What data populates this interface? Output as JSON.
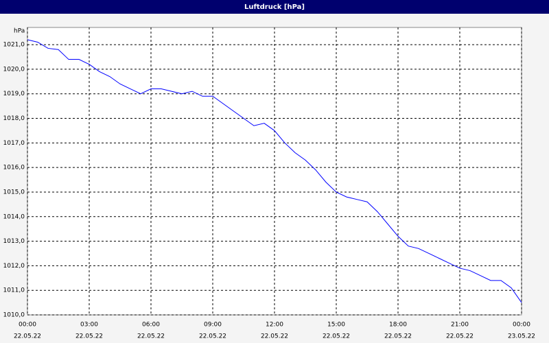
{
  "chart_data": {
    "type": "line",
    "title": "Luftdruck [hPa]",
    "y_label": "hPa",
    "x": [
      0,
      0.5,
      1,
      1.5,
      2,
      2.5,
      3,
      3.5,
      4,
      4.5,
      5,
      5.5,
      6,
      6.5,
      7,
      7.5,
      8,
      8.5,
      9,
      9.5,
      10,
      10.5,
      11,
      11.5,
      12,
      12.5,
      13,
      13.5,
      14,
      14.5,
      15,
      15.5,
      16,
      16.5,
      17,
      17.5,
      18,
      18.5,
      19,
      19.5,
      20,
      20.5,
      21,
      21.5,
      22,
      22.5,
      23,
      23.5,
      24
    ],
    "series": [
      {
        "name": "Luftdruck",
        "color": "#0000ff",
        "values": [
          1021.2,
          1021.1,
          1020.85,
          1020.8,
          1020.4,
          1020.4,
          1020.2,
          1019.9,
          1019.7,
          1019.4,
          1019.2,
          1019.0,
          1019.2,
          1019.2,
          1019.1,
          1019.0,
          1019.1,
          1018.9,
          1018.9,
          1018.6,
          1018.3,
          1018.0,
          1017.7,
          1017.8,
          1017.5,
          1017.0,
          1016.6,
          1016.3,
          1015.9,
          1015.4,
          1015.0,
          1014.8,
          1014.7,
          1014.6,
          1014.2,
          1013.7,
          1013.2,
          1012.8,
          1012.7,
          1012.5,
          1012.3,
          1012.1,
          1011.9,
          1011.8,
          1011.6,
          1011.4,
          1011.4,
          1011.1,
          1010.5
        ]
      }
    ],
    "xlim": [
      0,
      24
    ],
    "xticks": [
      {
        "value": 0,
        "label": "00:00",
        "date": "22.05.22"
      },
      {
        "value": 3,
        "label": "03:00",
        "date": "22.05.22"
      },
      {
        "value": 6,
        "label": "06:00",
        "date": "22.05.22"
      },
      {
        "value": 9,
        "label": "09:00",
        "date": "22.05.22"
      },
      {
        "value": 12,
        "label": "12:00",
        "date": "22.05.22"
      },
      {
        "value": 15,
        "label": "15:00",
        "date": "22.05.22"
      },
      {
        "value": 18,
        "label": "18:00",
        "date": "22.05.22"
      },
      {
        "value": 21,
        "label": "21:00",
        "date": "22.05.22"
      },
      {
        "value": 24,
        "label": "00:00",
        "date": "23.05.22"
      }
    ],
    "ylim": [
      1010,
      1021.7
    ],
    "yticks": [
      {
        "value": 1010,
        "label": "1010,0"
      },
      {
        "value": 1011,
        "label": "1011,0"
      },
      {
        "value": 1012,
        "label": "1012,0"
      },
      {
        "value": 1013,
        "label": "1013,0"
      },
      {
        "value": 1014,
        "label": "1014,0"
      },
      {
        "value": 1015,
        "label": "1015,0"
      },
      {
        "value": 1016,
        "label": "1016,0"
      },
      {
        "value": 1017,
        "label": "1017,0"
      },
      {
        "value": 1018,
        "label": "1018,0"
      },
      {
        "value": 1019,
        "label": "1019,0"
      },
      {
        "value": 1020,
        "label": "1020,0"
      },
      {
        "value": 1021,
        "label": "1021,0"
      }
    ],
    "grid": true
  }
}
